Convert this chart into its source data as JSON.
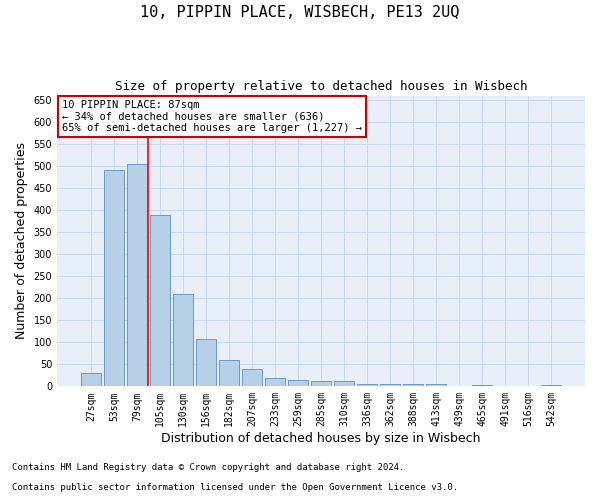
{
  "title": "10, PIPPIN PLACE, WISBECH, PE13 2UQ",
  "subtitle": "Size of property relative to detached houses in Wisbech",
  "xlabel": "Distribution of detached houses by size in Wisbech",
  "ylabel": "Number of detached properties",
  "footnote1": "Contains HM Land Registry data © Crown copyright and database right 2024.",
  "footnote2": "Contains public sector information licensed under the Open Government Licence v3.0.",
  "categories": [
    "27sqm",
    "53sqm",
    "79sqm",
    "105sqm",
    "130sqm",
    "156sqm",
    "182sqm",
    "207sqm",
    "233sqm",
    "259sqm",
    "285sqm",
    "310sqm",
    "336sqm",
    "362sqm",
    "388sqm",
    "413sqm",
    "439sqm",
    "465sqm",
    "491sqm",
    "516sqm",
    "542sqm"
  ],
  "values": [
    30,
    490,
    505,
    390,
    210,
    107,
    60,
    40,
    19,
    14,
    12,
    11,
    5,
    5,
    5,
    5,
    0,
    4,
    0,
    0,
    4
  ],
  "bar_color": "#b8cfe8",
  "bar_edge_color": "#6699cc",
  "red_line_x": 2.5,
  "annotation_text": "10 PIPPIN PLACE: 87sqm\n← 34% of detached houses are smaller (636)\n65% of semi-detached houses are larger (1,227) →",
  "annotation_box_facecolor": "#ffffff",
  "annotation_box_edgecolor": "#cc0000",
  "ylim": [
    0,
    660
  ],
  "yticks": [
    0,
    50,
    100,
    150,
    200,
    250,
    300,
    350,
    400,
    450,
    500,
    550,
    600,
    650
  ],
  "grid_color": "#c8d8ec",
  "bg_color": "#e8eff8",
  "title_fontsize": 11,
  "subtitle_fontsize": 9,
  "axis_label_fontsize": 9,
  "tick_fontsize": 7,
  "annotation_fontsize": 7.5,
  "footnote_fontsize": 6.5
}
